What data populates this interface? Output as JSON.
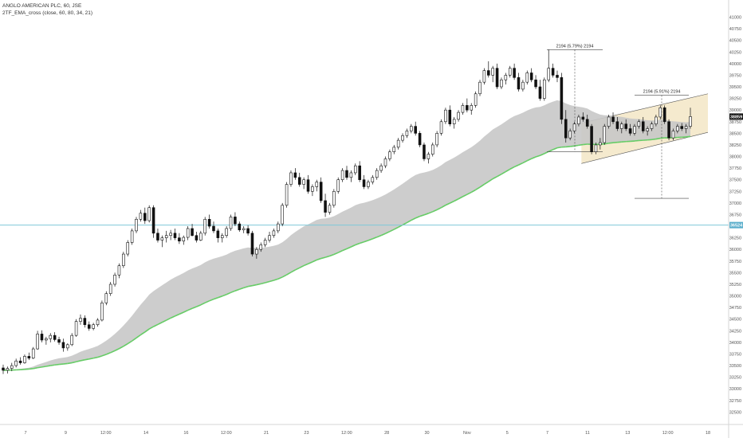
{
  "header": {
    "symbol_line": "ANGLO AMERICAN PLC, 60, JSE",
    "indicator_line": "2TF_EMA_cross (close, 60, 80, 34, 21)"
  },
  "colors": {
    "candle": "#111111",
    "cloud_fill": "#c8c8c8",
    "ema_bull": "#66cc66",
    "ema_bear": "#d94a4a",
    "horizontal_line": "#7fc8d8",
    "channel_fill": "#f3e6c6",
    "channel_border": "#555555",
    "price_tag_bg": "#111111",
    "hline_tag_bg": "#5aaecb"
  },
  "chart_data": {
    "type": "candlestick",
    "price_axis": {
      "ylim": [
        32250,
        41300
      ],
      "ticks": [
        "41000",
        "40750",
        "40500",
        "40250",
        "40000",
        "39750",
        "39500",
        "39250",
        "39000",
        "38750",
        "38500",
        "38250",
        "38000",
        "37750",
        "37500",
        "37250",
        "37000",
        "36750",
        "36500",
        "36250",
        "36000",
        "35750",
        "35500",
        "35250",
        "35000",
        "34750",
        "34500",
        "34250",
        "34000",
        "33750",
        "33500",
        "33250",
        "33000",
        "32750",
        "32500"
      ]
    },
    "time_axis": {
      "labels": [
        "7",
        "9",
        "12:00",
        "14",
        "16",
        "12:00",
        "21",
        "23",
        "12:00",
        "28",
        "30",
        "Nov",
        "5",
        "7",
        "11",
        "13",
        "12:00",
        "18"
      ]
    },
    "current_price": {
      "value": 38859,
      "label": "38859"
    },
    "horizontal_line": {
      "value": 36524,
      "label": "36524"
    },
    "measure_top": {
      "label": "2194 (5.79%) 2194"
    },
    "measure_bottom": {
      "label": "2194 (5.91%) 2194"
    },
    "candles": [
      [
        33450,
        33520,
        33320,
        33400
      ],
      [
        33400,
        33480,
        33330,
        33440
      ],
      [
        33440,
        33560,
        33380,
        33500
      ],
      [
        33500,
        33650,
        33460,
        33600
      ],
      [
        33600,
        33680,
        33520,
        33560
      ],
      [
        33560,
        33740,
        33540,
        33700
      ],
      [
        33700,
        33780,
        33620,
        33660
      ],
      [
        33660,
        33900,
        33640,
        33860
      ],
      [
        33860,
        34250,
        33840,
        34180
      ],
      [
        34180,
        34260,
        34000,
        34050
      ],
      [
        34050,
        34120,
        33950,
        34080
      ],
      [
        34080,
        34200,
        34000,
        34150
      ],
      [
        34150,
        34220,
        34020,
        34060
      ],
      [
        34060,
        34120,
        33950,
        34000
      ],
      [
        34000,
        34080,
        33800,
        33880
      ],
      [
        33880,
        33980,
        33820,
        33950
      ],
      [
        33950,
        34200,
        33920,
        34150
      ],
      [
        34150,
        34500,
        34120,
        34450
      ],
      [
        34450,
        34600,
        34380,
        34520
      ],
      [
        34520,
        34580,
        34320,
        34380
      ],
      [
        34380,
        34450,
        34250,
        34300
      ],
      [
        34300,
        34420,
        34260,
        34380
      ],
      [
        34380,
        34520,
        34340,
        34480
      ],
      [
        34480,
        34900,
        34450,
        34850
      ],
      [
        34850,
        35100,
        34800,
        35050
      ],
      [
        35050,
        35300,
        35000,
        35250
      ],
      [
        35250,
        35500,
        35200,
        35450
      ],
      [
        35450,
        35700,
        35380,
        35650
      ],
      [
        35650,
        35950,
        35600,
        35900
      ],
      [
        35900,
        36200,
        35850,
        36150
      ],
      [
        36150,
        36450,
        36100,
        36400
      ],
      [
        36400,
        36700,
        36350,
        36650
      ],
      [
        36650,
        36850,
        36600,
        36780
      ],
      [
        36780,
        36900,
        36550,
        36620
      ],
      [
        36620,
        36950,
        36580,
        36900
      ],
      [
        36900,
        36950,
        36250,
        36350
      ],
      [
        36350,
        36450,
        36150,
        36200
      ],
      [
        36200,
        36300,
        36050,
        36250
      ],
      [
        36250,
        36400,
        36150,
        36300
      ],
      [
        36300,
        36420,
        36200,
        36350
      ],
      [
        36350,
        36450,
        36200,
        36250
      ],
      [
        36250,
        36350,
        36120,
        36180
      ],
      [
        36180,
        36300,
        36100,
        36260
      ],
      [
        36260,
        36500,
        36200,
        36450
      ],
      [
        36450,
        36550,
        36280,
        36300
      ],
      [
        36300,
        36380,
        36150,
        36200
      ],
      [
        36200,
        36400,
        36180,
        36350
      ],
      [
        36350,
        36700,
        36300,
        36650
      ],
      [
        36650,
        36750,
        36450,
        36500
      ],
      [
        36500,
        36600,
        36350,
        36400
      ],
      [
        36400,
        36450,
        36150,
        36250
      ],
      [
        36250,
        36350,
        36150,
        36300
      ],
      [
        36300,
        36500,
        36250,
        36450
      ],
      [
        36450,
        36750,
        36400,
        36700
      ],
      [
        36700,
        36800,
        36500,
        36550
      ],
      [
        36550,
        36600,
        36380,
        36420
      ],
      [
        36420,
        36500,
        36350,
        36450
      ],
      [
        36450,
        36520,
        36300,
        36350
      ],
      [
        36350,
        36400,
        35850,
        35900
      ],
      [
        35900,
        36050,
        35800,
        36000
      ],
      [
        36000,
        36150,
        35950,
        36100
      ],
      [
        36100,
        36250,
        36050,
        36200
      ],
      [
        36200,
        36380,
        36150,
        36300
      ],
      [
        36300,
        36450,
        36250,
        36400
      ],
      [
        36400,
        36600,
        36350,
        36550
      ],
      [
        36550,
        37000,
        36500,
        36950
      ],
      [
        36950,
        37450,
        36900,
        37400
      ],
      [
        37400,
        37700,
        37350,
        37650
      ],
      [
        37650,
        37750,
        37500,
        37550
      ],
      [
        37550,
        37650,
        37350,
        37400
      ],
      [
        37400,
        37550,
        37300,
        37500
      ],
      [
        37500,
        37600,
        37200,
        37250
      ],
      [
        37250,
        37400,
        37150,
        37350
      ],
      [
        37350,
        37500,
        37250,
        37450
      ],
      [
        37450,
        37550,
        37000,
        37050
      ],
      [
        37050,
        37200,
        36700,
        36800
      ],
      [
        36800,
        37000,
        36750,
        36950
      ],
      [
        36950,
        37300,
        36900,
        37250
      ],
      [
        37250,
        37550,
        37200,
        37500
      ],
      [
        37500,
        37750,
        37450,
        37700
      ],
      [
        37700,
        37800,
        37500,
        37550
      ],
      [
        37550,
        37700,
        37450,
        37650
      ],
      [
        37650,
        37850,
        37600,
        37800
      ],
      [
        37800,
        37900,
        37450,
        37500
      ],
      [
        37500,
        37600,
        37300,
        37350
      ],
      [
        37350,
        37500,
        37300,
        37450
      ],
      [
        37450,
        37600,
        37400,
        37550
      ],
      [
        37550,
        37750,
        37500,
        37700
      ],
      [
        37700,
        37850,
        37650,
        37800
      ],
      [
        37800,
        38000,
        37750,
        37950
      ],
      [
        37950,
        38150,
        37900,
        38100
      ],
      [
        38100,
        38250,
        38050,
        38200
      ],
      [
        38200,
        38400,
        38150,
        38350
      ],
      [
        38350,
        38500,
        38300,
        38450
      ],
      [
        38450,
        38600,
        38400,
        38550
      ],
      [
        38550,
        38700,
        38500,
        38650
      ],
      [
        38650,
        38750,
        38450,
        38500
      ],
      [
        38500,
        38550,
        38200,
        38250
      ],
      [
        38250,
        38300,
        37900,
        37950
      ],
      [
        37950,
        38100,
        37850,
        38050
      ],
      [
        38050,
        38300,
        38000,
        38250
      ],
      [
        38250,
        38550,
        38200,
        38500
      ],
      [
        38500,
        38800,
        38450,
        38750
      ],
      [
        38750,
        39050,
        38700,
        39000
      ],
      [
        39000,
        39100,
        38650,
        38700
      ],
      [
        38700,
        38850,
        38600,
        38800
      ],
      [
        38800,
        39000,
        38750,
        38950
      ],
      [
        38950,
        39150,
        38900,
        39100
      ],
      [
        39100,
        39250,
        38950,
        39000
      ],
      [
        39000,
        39150,
        38900,
        39100
      ],
      [
        39100,
        39400,
        39050,
        39350
      ],
      [
        39350,
        39650,
        39300,
        39600
      ],
      [
        39600,
        39900,
        39550,
        39850
      ],
      [
        39850,
        40050,
        39700,
        39750
      ],
      [
        39750,
        39950,
        39600,
        39900
      ],
      [
        39900,
        40000,
        39450,
        39500
      ],
      [
        39500,
        39700,
        39450,
        39650
      ],
      [
        39650,
        39800,
        39550,
        39750
      ],
      [
        39750,
        39950,
        39700,
        39900
      ],
      [
        39900,
        40000,
        39650,
        39700
      ],
      [
        39700,
        39800,
        39400,
        39450
      ],
      [
        39450,
        39650,
        39400,
        39600
      ],
      [
        39600,
        39850,
        39550,
        39800
      ],
      [
        39800,
        39900,
        39600,
        39650
      ],
      [
        39650,
        39750,
        39450,
        39500
      ],
      [
        39500,
        39650,
        39200,
        39250
      ],
      [
        39250,
        39700,
        39200,
        39650
      ],
      [
        39650,
        40300,
        39600,
        39900
      ],
      [
        39900,
        40000,
        39700,
        39750
      ],
      [
        39750,
        39850,
        39600,
        39700
      ],
      [
        39700,
        39800,
        38700,
        38800
      ],
      [
        38800,
        39000,
        38300,
        38400
      ],
      [
        38400,
        38600,
        38350,
        38550
      ],
      [
        38550,
        38750,
        38500,
        38700
      ],
      [
        38700,
        38900,
        38650,
        38850
      ],
      [
        38850,
        38950,
        38750,
        38800
      ],
      [
        38800,
        38900,
        38600,
        38650
      ],
      [
        38650,
        38700,
        38050,
        38100
      ],
      [
        38100,
        38300,
        38050,
        38250
      ],
      [
        38250,
        38400,
        38150,
        38300
      ],
      [
        38300,
        38700,
        38250,
        38650
      ],
      [
        38650,
        38900,
        38600,
        38850
      ],
      [
        38850,
        38950,
        38700,
        38750
      ],
      [
        38750,
        38850,
        38550,
        38600
      ],
      [
        38600,
        38750,
        38500,
        38700
      ],
      [
        38700,
        38800,
        38550,
        38600
      ],
      [
        38600,
        38700,
        38450,
        38500
      ],
      [
        38500,
        38700,
        38450,
        38650
      ],
      [
        38650,
        38800,
        38600,
        38750
      ],
      [
        38750,
        38850,
        38500,
        38550
      ],
      [
        38550,
        38650,
        38450,
        38600
      ],
      [
        38600,
        38750,
        38550,
        38700
      ],
      [
        38700,
        38900,
        38650,
        38850
      ],
      [
        38850,
        39100,
        38800,
        39050
      ],
      [
        39050,
        39100,
        38700,
        38750
      ],
      [
        38750,
        38800,
        38350,
        38400
      ],
      [
        38400,
        38600,
        38350,
        38550
      ],
      [
        38550,
        38700,
        38500,
        38650
      ],
      [
        38650,
        38720,
        38550,
        38600
      ],
      [
        38600,
        38700,
        38500,
        38650
      ],
      [
        38650,
        39050,
        38600,
        38859
      ]
    ]
  }
}
